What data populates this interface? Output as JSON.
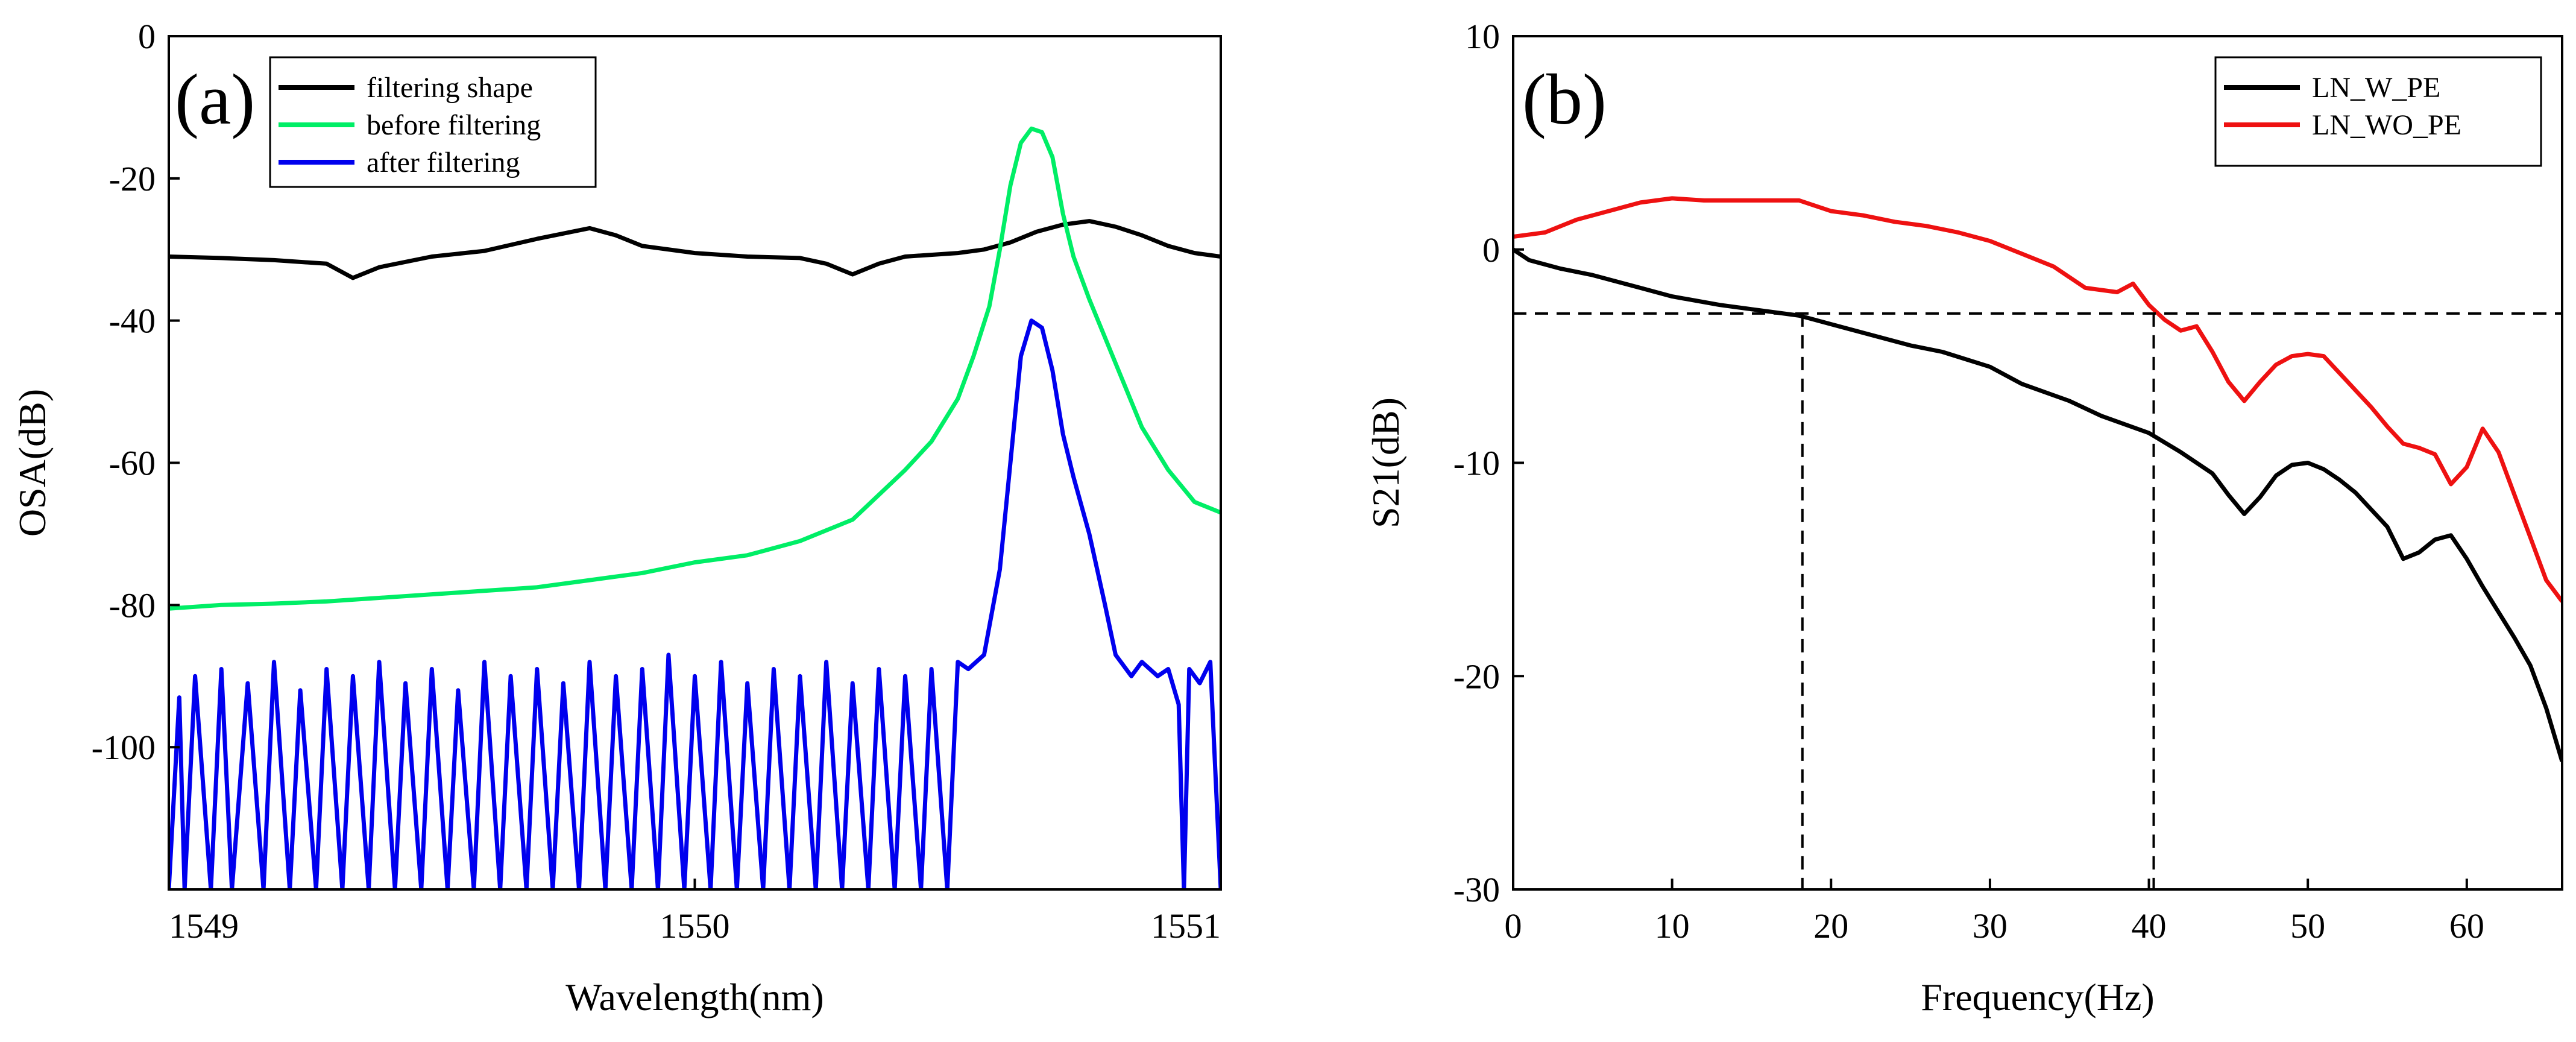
{
  "chart_data": [
    {
      "type": "line",
      "panel_label": "(a)",
      "xlabel": "Wavelength(nm)",
      "ylabel": "OSA(dB)",
      "xlim": [
        1549,
        1551
      ],
      "ylim": [
        -120,
        0
      ],
      "xticks": [
        1549,
        1550,
        1551
      ],
      "yticks": [
        0,
        -20,
        -40,
        -60,
        -80,
        -100
      ],
      "legend_position": "top-left",
      "series": [
        {
          "name": "filtering shape",
          "color": "#000000",
          "points": [
            [
              1549.0,
              -31
            ],
            [
              1549.1,
              -31.2
            ],
            [
              1549.2,
              -31.5
            ],
            [
              1549.3,
              -32
            ],
            [
              1549.35,
              -34
            ],
            [
              1549.4,
              -32.5
            ],
            [
              1549.5,
              -31
            ],
            [
              1549.6,
              -30.2
            ],
            [
              1549.7,
              -28.5
            ],
            [
              1549.8,
              -27
            ],
            [
              1549.85,
              -28
            ],
            [
              1549.9,
              -29.5
            ],
            [
              1550.0,
              -30.5
            ],
            [
              1550.1,
              -31
            ],
            [
              1550.2,
              -31.2
            ],
            [
              1550.25,
              -32
            ],
            [
              1550.3,
              -33.5
            ],
            [
              1550.35,
              -32
            ],
            [
              1550.4,
              -31
            ],
            [
              1550.5,
              -30.5
            ],
            [
              1550.55,
              -30
            ],
            [
              1550.6,
              -29
            ],
            [
              1550.65,
              -27.5
            ],
            [
              1550.7,
              -26.5
            ],
            [
              1550.75,
              -26
            ],
            [
              1550.8,
              -26.8
            ],
            [
              1550.85,
              -28
            ],
            [
              1550.9,
              -29.5
            ],
            [
              1550.95,
              -30.5
            ],
            [
              1551.0,
              -31
            ]
          ]
        },
        {
          "name": "before filtering",
          "color": "#00ee66",
          "points": [
            [
              1549.0,
              -80.5
            ],
            [
              1549.1,
              -80
            ],
            [
              1549.2,
              -79.8
            ],
            [
              1549.3,
              -79.5
            ],
            [
              1549.4,
              -79
            ],
            [
              1549.5,
              -78.5
            ],
            [
              1549.6,
              -78
            ],
            [
              1549.7,
              -77.5
            ],
            [
              1549.8,
              -76.5
            ],
            [
              1549.9,
              -75.5
            ],
            [
              1550.0,
              -74
            ],
            [
              1550.1,
              -73
            ],
            [
              1550.2,
              -71
            ],
            [
              1550.3,
              -68
            ],
            [
              1550.35,
              -64.5
            ],
            [
              1550.4,
              -61
            ],
            [
              1550.45,
              -57
            ],
            [
              1550.5,
              -51
            ],
            [
              1550.53,
              -45
            ],
            [
              1550.56,
              -38
            ],
            [
              1550.58,
              -30
            ],
            [
              1550.6,
              -21
            ],
            [
              1550.62,
              -15
            ],
            [
              1550.64,
              -13
            ],
            [
              1550.66,
              -13.5
            ],
            [
              1550.68,
              -17
            ],
            [
              1550.7,
              -25
            ],
            [
              1550.72,
              -31
            ],
            [
              1550.75,
              -37
            ],
            [
              1550.8,
              -46
            ],
            [
              1550.85,
              -55
            ],
            [
              1550.9,
              -61
            ],
            [
              1550.95,
              -65.5
            ],
            [
              1551.0,
              -67
            ]
          ]
        },
        {
          "name": "after filtering",
          "color": "#0000ee",
          "points": [
            [
              1549.0,
              -120
            ],
            [
              1549.02,
              -93
            ],
            [
              1549.03,
              -120
            ],
            [
              1549.05,
              -90
            ],
            [
              1549.08,
              -120
            ],
            [
              1549.1,
              -89
            ],
            [
              1549.12,
              -120
            ],
            [
              1549.15,
              -91
            ],
            [
              1549.18,
              -120
            ],
            [
              1549.2,
              -88
            ],
            [
              1549.23,
              -120
            ],
            [
              1549.25,
              -92
            ],
            [
              1549.28,
              -120
            ],
            [
              1549.3,
              -89
            ],
            [
              1549.33,
              -120
            ],
            [
              1549.35,
              -90
            ],
            [
              1549.38,
              -120
            ],
            [
              1549.4,
              -88
            ],
            [
              1549.43,
              -120
            ],
            [
              1549.45,
              -91
            ],
            [
              1549.48,
              -120
            ],
            [
              1549.5,
              -89
            ],
            [
              1549.53,
              -120
            ],
            [
              1549.55,
              -92
            ],
            [
              1549.58,
              -120
            ],
            [
              1549.6,
              -88
            ],
            [
              1549.63,
              -120
            ],
            [
              1549.65,
              -90
            ],
            [
              1549.68,
              -120
            ],
            [
              1549.7,
              -89
            ],
            [
              1549.73,
              -120
            ],
            [
              1549.75,
              -91
            ],
            [
              1549.78,
              -120
            ],
            [
              1549.8,
              -88
            ],
            [
              1549.83,
              -120
            ],
            [
              1549.85,
              -90
            ],
            [
              1549.88,
              -120
            ],
            [
              1549.9,
              -89
            ],
            [
              1549.93,
              -120
            ],
            [
              1549.95,
              -87
            ],
            [
              1549.98,
              -120
            ],
            [
              1550.0,
              -90
            ],
            [
              1550.03,
              -120
            ],
            [
              1550.05,
              -88
            ],
            [
              1550.08,
              -120
            ],
            [
              1550.1,
              -91
            ],
            [
              1550.13,
              -120
            ],
            [
              1550.15,
              -89
            ],
            [
              1550.18,
              -120
            ],
            [
              1550.2,
              -90
            ],
            [
              1550.23,
              -120
            ],
            [
              1550.25,
              -88
            ],
            [
              1550.28,
              -120
            ],
            [
              1550.3,
              -91
            ],
            [
              1550.33,
              -120
            ],
            [
              1550.35,
              -89
            ],
            [
              1550.38,
              -120
            ],
            [
              1550.4,
              -90
            ],
            [
              1550.43,
              -120
            ],
            [
              1550.45,
              -89
            ],
            [
              1550.48,
              -120
            ],
            [
              1550.5,
              -88
            ],
            [
              1550.52,
              -89
            ],
            [
              1550.55,
              -87
            ],
            [
              1550.58,
              -75
            ],
            [
              1550.6,
              -60
            ],
            [
              1550.62,
              -45
            ],
            [
              1550.64,
              -40
            ],
            [
              1550.66,
              -41
            ],
            [
              1550.68,
              -47
            ],
            [
              1550.7,
              -56
            ],
            [
              1550.72,
              -62
            ],
            [
              1550.75,
              -70
            ],
            [
              1550.78,
              -80
            ],
            [
              1550.8,
              -87
            ],
            [
              1550.83,
              -90
            ],
            [
              1550.85,
              -88
            ],
            [
              1550.88,
              -90
            ],
            [
              1550.9,
              -89
            ],
            [
              1550.92,
              -94
            ],
            [
              1550.93,
              -120
            ],
            [
              1550.94,
              -89
            ],
            [
              1550.96,
              -91
            ],
            [
              1550.98,
              -88
            ],
            [
              1551.0,
              -120
            ]
          ]
        }
      ]
    },
    {
      "type": "line",
      "panel_label": "(b)",
      "xlabel": "Frequency(Hz)",
      "ylabel": "S21(dB)",
      "xlim": [
        0,
        66
      ],
      "ylim": [
        -30,
        10
      ],
      "xticks": [
        0,
        10,
        20,
        30,
        40,
        50,
        60
      ],
      "yticks": [
        10,
        0,
        -10,
        -20,
        -30
      ],
      "legend_position": "top-right",
      "reference_lines": {
        "y": -3,
        "x": [
          18.2,
          40.3
        ]
      },
      "series": [
        {
          "name": "LN_W_PE",
          "color": "#000000",
          "points": [
            [
              0,
              0
            ],
            [
              1,
              -0.5
            ],
            [
              3,
              -0.9
            ],
            [
              5,
              -1.2
            ],
            [
              8,
              -1.8
            ],
            [
              10,
              -2.2
            ],
            [
              13,
              -2.6
            ],
            [
              15,
              -2.8
            ],
            [
              18,
              -3.1
            ],
            [
              20,
              -3.5
            ],
            [
              22,
              -3.9
            ],
            [
              25,
              -4.5
            ],
            [
              27,
              -4.8
            ],
            [
              30,
              -5.5
            ],
            [
              32,
              -6.3
            ],
            [
              35,
              -7.1
            ],
            [
              37,
              -7.8
            ],
            [
              40,
              -8.6
            ],
            [
              42,
              -9.5
            ],
            [
              44,
              -10.5
            ],
            [
              45,
              -11.5
            ],
            [
              46,
              -12.4
            ],
            [
              47,
              -11.6
            ],
            [
              48,
              -10.6
            ],
            [
              49,
              -10.1
            ],
            [
              50,
              -10.0
            ],
            [
              51,
              -10.3
            ],
            [
              52,
              -10.8
            ],
            [
              53,
              -11.4
            ],
            [
              55,
              -13.0
            ],
            [
              56,
              -14.5
            ],
            [
              57,
              -14.2
            ],
            [
              58,
              -13.6
            ],
            [
              59,
              -13.4
            ],
            [
              60,
              -14.5
            ],
            [
              61,
              -15.8
            ],
            [
              62,
              -17.0
            ],
            [
              63,
              -18.2
            ],
            [
              64,
              -19.5
            ],
            [
              65,
              -21.5
            ],
            [
              66,
              -24.0
            ]
          ]
        },
        {
          "name": "LN_WO_PE",
          "color": "#ee1111",
          "points": [
            [
              0,
              0.6
            ],
            [
              2,
              0.8
            ],
            [
              4,
              1.4
            ],
            [
              6,
              1.8
            ],
            [
              8,
              2.2
            ],
            [
              10,
              2.4
            ],
            [
              12,
              2.3
            ],
            [
              14,
              2.3
            ],
            [
              16,
              2.3
            ],
            [
              18,
              2.3
            ],
            [
              20,
              1.8
            ],
            [
              22,
              1.6
            ],
            [
              24,
              1.3
            ],
            [
              26,
              1.1
            ],
            [
              28,
              0.8
            ],
            [
              30,
              0.4
            ],
            [
              32,
              -0.2
            ],
            [
              34,
              -0.8
            ],
            [
              36,
              -1.8
            ],
            [
              38,
              -2.0
            ],
            [
              39,
              -1.6
            ],
            [
              40,
              -2.6
            ],
            [
              41,
              -3.3
            ],
            [
              42,
              -3.8
            ],
            [
              43,
              -3.6
            ],
            [
              44,
              -4.8
            ],
            [
              45,
              -6.2
            ],
            [
              46,
              -7.1
            ],
            [
              47,
              -6.2
            ],
            [
              48,
              -5.4
            ],
            [
              49,
              -5.0
            ],
            [
              50,
              -4.9
            ],
            [
              51,
              -5.0
            ],
            [
              52,
              -5.8
            ],
            [
              53,
              -6.6
            ],
            [
              54,
              -7.4
            ],
            [
              55,
              -8.3
            ],
            [
              56,
              -9.1
            ],
            [
              57,
              -9.3
            ],
            [
              58,
              -9.6
            ],
            [
              59,
              -11.0
            ],
            [
              60,
              -10.2
            ],
            [
              61,
              -8.4
            ],
            [
              62,
              -9.5
            ],
            [
              63,
              -11.5
            ],
            [
              64,
              -13.5
            ],
            [
              65,
              -15.5
            ],
            [
              66,
              -16.5
            ]
          ]
        },
        {
          "name": "",
          "color": "#000000",
          "dashed": true,
          "points": [
            [
              0,
              -3
            ],
            [
              66,
              -3
            ]
          ]
        },
        {
          "name": "",
          "color": "#000000",
          "dashed": true,
          "points": [
            [
              18.2,
              -3
            ],
            [
              18.2,
              -30
            ]
          ]
        },
        {
          "name": "",
          "color": "#000000",
          "dashed": true,
          "points": [
            [
              40.3,
              -3
            ],
            [
              40.3,
              -30
            ]
          ]
        }
      ]
    }
  ]
}
